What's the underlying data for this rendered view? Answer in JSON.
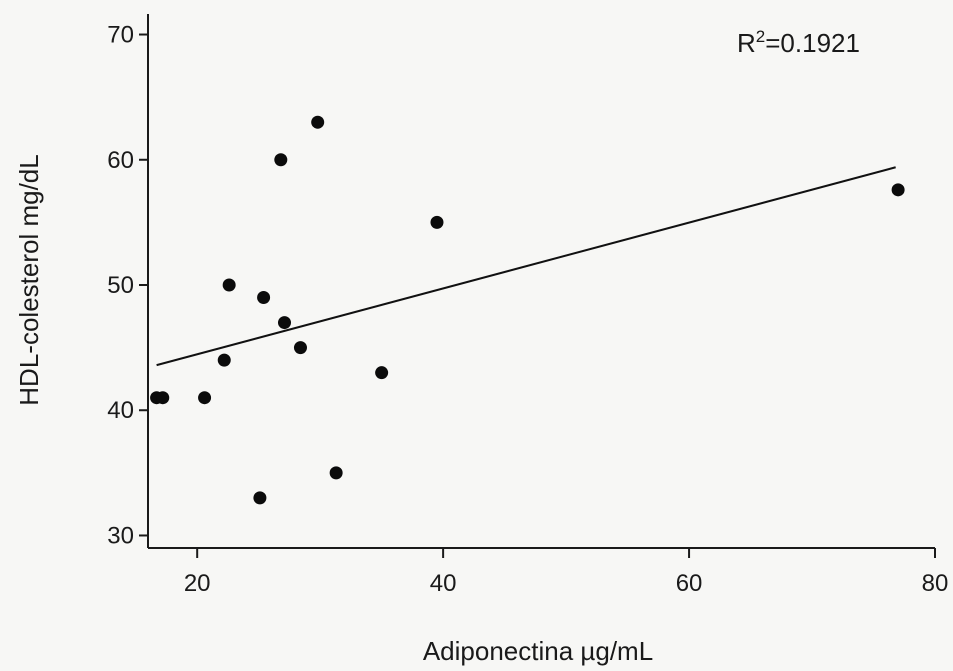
{
  "chart_data": {
    "type": "scatter",
    "title": "",
    "xlabel": "Adiponectina µg/mL",
    "ylabel": "HDL-colesterol mg/dL",
    "xlim": [
      16,
      80
    ],
    "ylim": [
      29,
      71
    ],
    "xticks": [
      20,
      40,
      60,
      80
    ],
    "yticks": [
      30,
      40,
      50,
      60,
      70
    ],
    "grid": false,
    "series": [
      {
        "points": [
          {
            "x": 16.7,
            "y": 41
          },
          {
            "x": 17.2,
            "y": 41
          },
          {
            "x": 20.6,
            "y": 41
          },
          {
            "x": 22.2,
            "y": 44
          },
          {
            "x": 22.6,
            "y": 50
          },
          {
            "x": 25.1,
            "y": 33
          },
          {
            "x": 25.4,
            "y": 49
          },
          {
            "x": 26.8,
            "y": 60
          },
          {
            "x": 27.1,
            "y": 47
          },
          {
            "x": 28.4,
            "y": 45
          },
          {
            "x": 29.8,
            "y": 63
          },
          {
            "x": 31.3,
            "y": 35
          },
          {
            "x": 35.0,
            "y": 43
          },
          {
            "x": 39.5,
            "y": 55
          },
          {
            "x": 77.0,
            "y": 57.6
          }
        ]
      }
    ],
    "trendline": {
      "x": [
        16.7,
        76.8
      ],
      "y": [
        43.6,
        59.4
      ]
    },
    "annotation": {
      "r2_prefix": "R",
      "r2_sup": "2",
      "r2_value": "=0.1921"
    },
    "colors": {
      "marker": "#0b0b0b",
      "line": "#111111",
      "axis": "#1a1a1a"
    }
  }
}
